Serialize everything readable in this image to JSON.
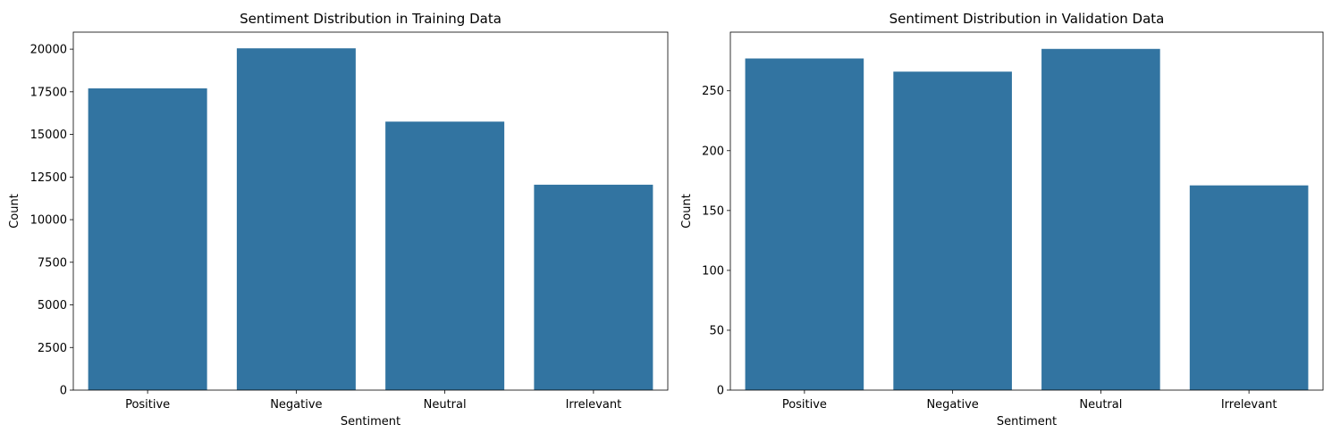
{
  "chart_data": [
    {
      "type": "bar",
      "title": "Sentiment Distribution in Training Data",
      "xlabel": "Sentiment",
      "ylabel": "Count",
      "categories": [
        "Positive",
        "Negative",
        "Neutral",
        "Irrelevant"
      ],
      "values": [
        17700,
        20050,
        15750,
        12050
      ],
      "ylim": [
        0,
        21000
      ],
      "yticks": [
        0,
        2500,
        5000,
        7500,
        10000,
        12500,
        15000,
        17500,
        20000
      ],
      "grid": false,
      "legend": "none",
      "bar_color": "#3274a1"
    },
    {
      "type": "bar",
      "title": "Sentiment Distribution in Validation Data",
      "xlabel": "Sentiment",
      "ylabel": "Count",
      "categories": [
        "Positive",
        "Negative",
        "Neutral",
        "Irrelevant"
      ],
      "values": [
        277,
        266,
        285,
        171
      ],
      "ylim": [
        0,
        299
      ],
      "yticks": [
        0,
        50,
        100,
        150,
        200,
        250
      ],
      "grid": false,
      "legend": "none",
      "bar_color": "#3274a1"
    }
  ]
}
